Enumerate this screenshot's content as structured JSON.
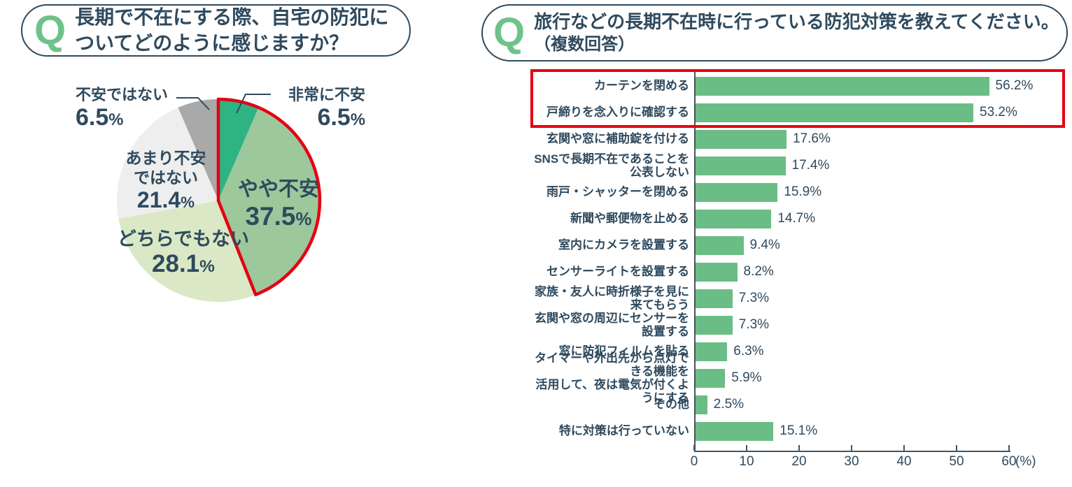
{
  "units": {
    "percent": "%"
  },
  "questions": {
    "left": {
      "q": "Q",
      "line1": "長期で不在にする際、自宅の防犯に",
      "line2": "ついてどのように感じますか？"
    },
    "right": {
      "q": "Q",
      "line1": "旅行などの長期不在時に行っている防犯対策を教えてください。",
      "line2": "（複数回答）"
    }
  },
  "chart_data": [
    {
      "type": "pie",
      "title": "長期で不在にする際、自宅の防犯についてどのように感じますか？",
      "start_angle_deg": 0,
      "direction": "clockwise",
      "highlight_outline_color": "#e60012",
      "slices": [
        {
          "label": "非常に不安",
          "value": 6.5,
          "color": "#2db482",
          "highlighted": true
        },
        {
          "label": "やや不安",
          "value": 37.5,
          "color": "#9cc89b",
          "highlighted": true
        },
        {
          "label": "どちらでもない",
          "value": 28.1,
          "color": "#dae8c5",
          "highlighted": false
        },
        {
          "label": "あまり不安ではない",
          "label_lines": [
            "あまり不安",
            "ではない"
          ],
          "value": 21.4,
          "color": "#eeeeee",
          "highlighted": false
        },
        {
          "label": "不安ではない",
          "value": 6.5,
          "color": "#a9a9a9",
          "highlighted": false
        }
      ]
    },
    {
      "type": "bar",
      "orientation": "horizontal",
      "title": "旅行などの長期不在時に行っている防犯対策を教えてください。（複数回答）",
      "bar_color": "#6abd85",
      "axis_color": "#45555f",
      "xlim": [
        0,
        60
      ],
      "x_ticks": [
        0,
        10,
        20,
        30,
        40,
        50,
        60
      ],
      "x_unit": "(%)",
      "highlighted_rows": [
        0,
        1
      ],
      "highlight_box_color": "#e60012",
      "categories": [
        "カーテンを閉める",
        "戸締りを念入りに確認する",
        "玄関や窓に補助錠を付ける",
        "SNSで長期不在であることを公表しない",
        "雨戸・シャッターを閉める",
        "新聞や郵便物を止める",
        "室内にカメラを設置する",
        "センサーライトを設置する",
        "家族・友人に時折様子を見に来てもらう",
        "玄関や窓の周辺にセンサーを設置する",
        "窓に防犯フィルムを貼る",
        "タイマーや外出先から点灯できる機能を\n活用して、夜は電気が付くようにする",
        "その他",
        "特に対策は行っていない"
      ],
      "values": [
        56.2,
        53.2,
        17.6,
        17.4,
        15.9,
        14.7,
        9.4,
        8.2,
        7.3,
        7.3,
        6.3,
        5.9,
        2.5,
        15.1
      ]
    }
  ],
  "colors": {
    "text": "#2f4a5e",
    "q_badge": "#6ec28b"
  }
}
